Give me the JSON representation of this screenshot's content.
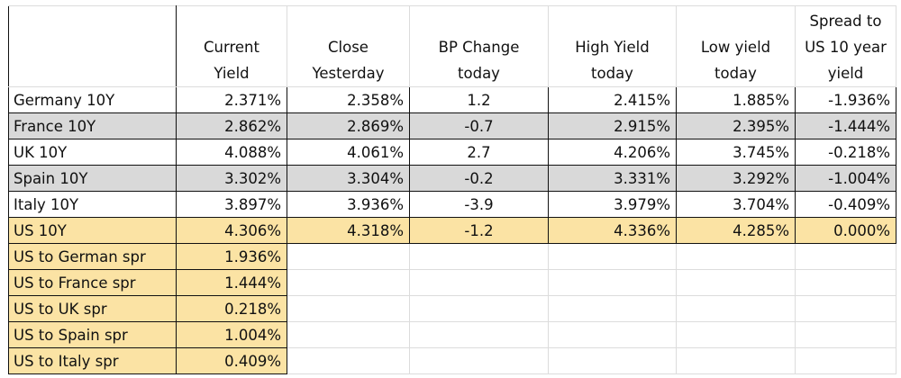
{
  "headers": {
    "current_yield": [
      "Current",
      "Yield"
    ],
    "close_yesterday": [
      "Close",
      "Yesterday"
    ],
    "bp_change": [
      "BP Change",
      "today"
    ],
    "high_yield": [
      "High Yield",
      "today"
    ],
    "low_yield": [
      "Low yield",
      "today"
    ],
    "spread": [
      "Spread to",
      "US 10 year",
      "yield"
    ]
  },
  "rows": [
    {
      "name": "Germany 10Y",
      "current": "2.371%",
      "close": "2.358%",
      "bp": "1.2",
      "high": "2.415%",
      "low": "1.885%",
      "spread": "-1.936%"
    },
    {
      "name": "France 10Y",
      "current": "2.862%",
      "close": "2.869%",
      "bp": "-0.7",
      "high": "2.915%",
      "low": "2.395%",
      "spread": "-1.444%"
    },
    {
      "name": "UK 10Y",
      "current": "4.088%",
      "close": "4.061%",
      "bp": "2.7",
      "high": "4.206%",
      "low": "3.745%",
      "spread": "-0.218%"
    },
    {
      "name": "Spain 10Y",
      "current": "3.302%",
      "close": "3.304%",
      "bp": "-0.2",
      "high": "3.331%",
      "low": "3.292%",
      "spread": "-1.004%"
    },
    {
      "name": "Italy 10Y",
      "current": "3.897%",
      "close": "3.936%",
      "bp": "-3.9",
      "high": "3.979%",
      "low": "3.704%",
      "spread": "-0.409%"
    },
    {
      "name": "US 10Y",
      "current": "4.306%",
      "close": "4.318%",
      "bp": "-1.2",
      "high": "4.336%",
      "low": "4.285%",
      "spread": "0.000%"
    }
  ],
  "spreads": [
    {
      "label": "US to German spr",
      "value": "1.936%"
    },
    {
      "label": "US to France spr",
      "value": "1.444%"
    },
    {
      "label": "US to UK spr",
      "value": "0.218%"
    },
    {
      "label": "US to Spain spr",
      "value": "1.004%"
    },
    {
      "label": "US to Italy spr",
      "value": "0.409%"
    }
  ],
  "colors": {
    "gray_row": "#d9d9d9",
    "highlight": "#fbe3a4"
  }
}
